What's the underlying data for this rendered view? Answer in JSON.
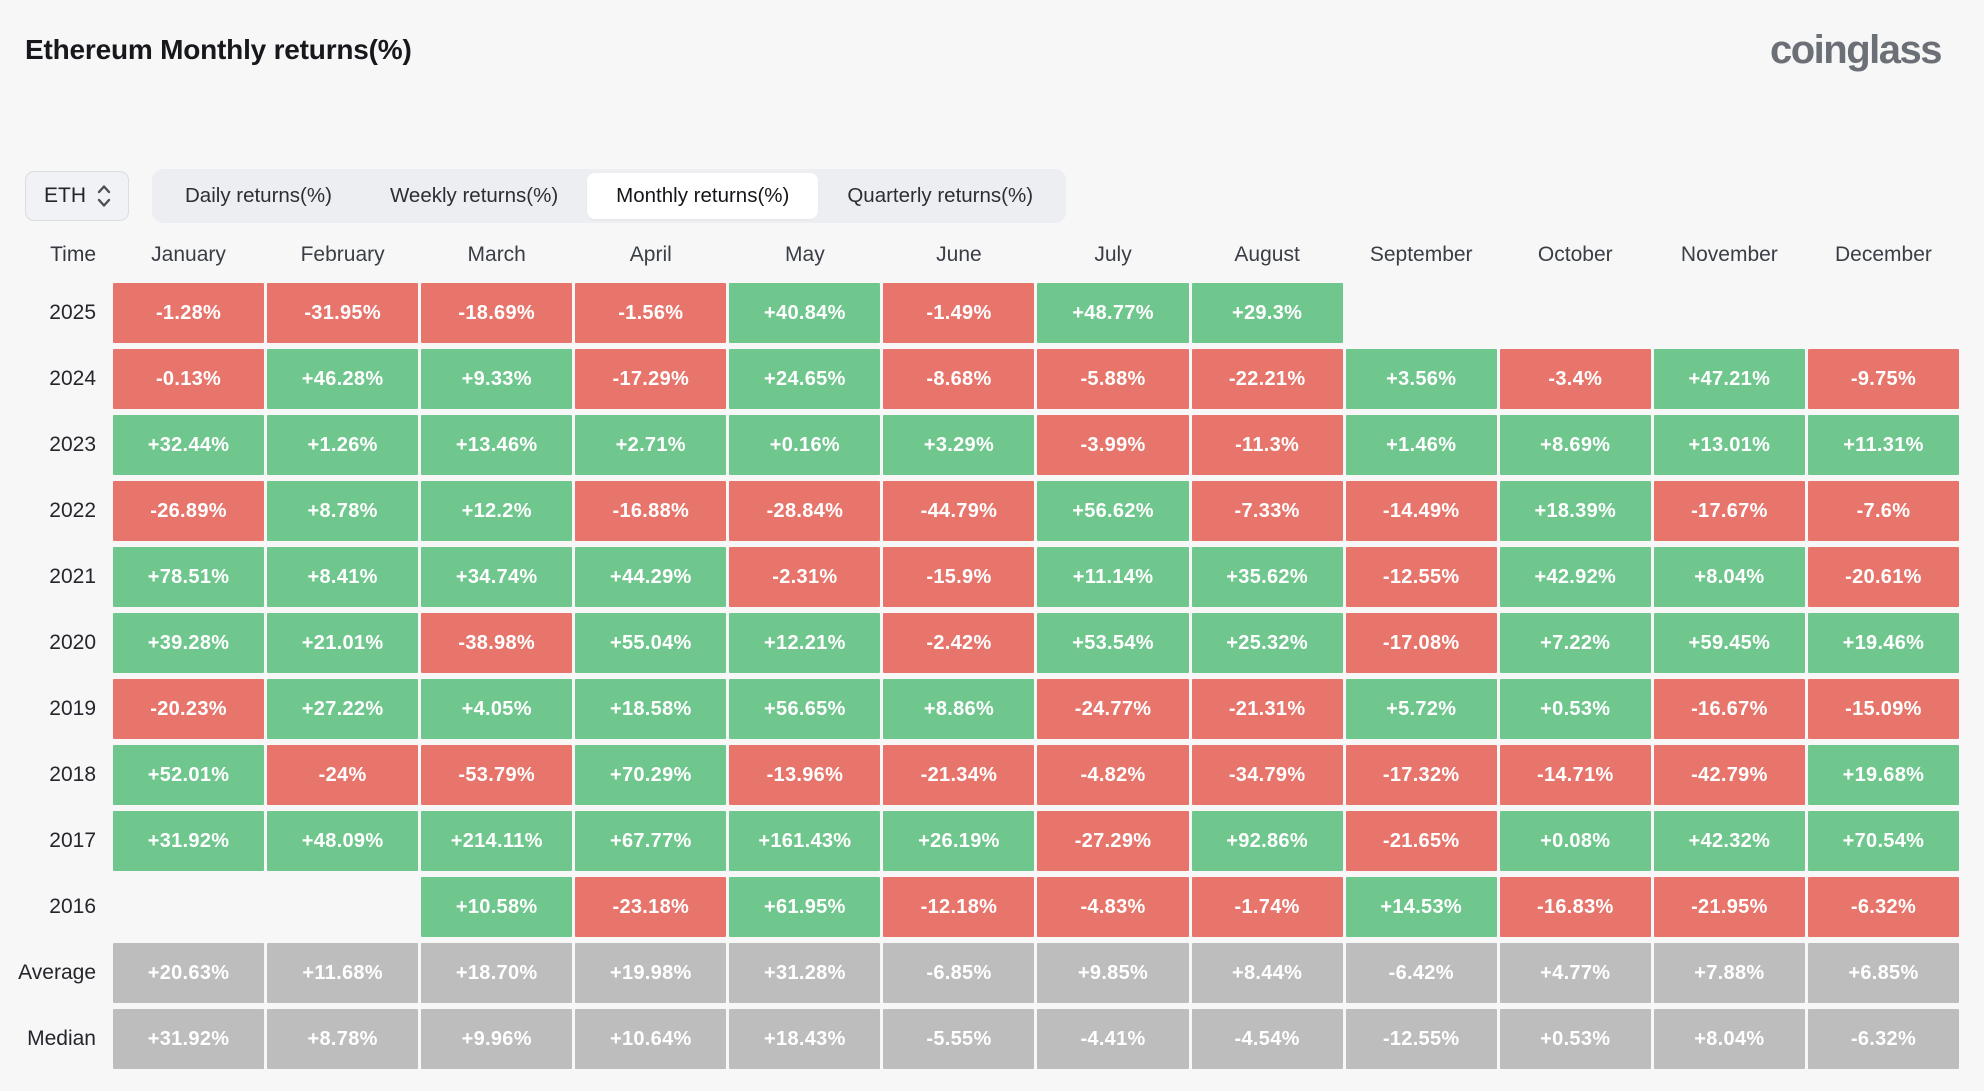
{
  "header": {
    "title": "Ethereum Monthly returns(%)",
    "logo_text": "coinglass"
  },
  "controls": {
    "symbol_select": {
      "value": "ETH",
      "icon": "chevron-up-down-icon"
    },
    "tabs": [
      {
        "label": "Daily returns(%)",
        "active": false
      },
      {
        "label": "Weekly returns(%)",
        "active": false
      },
      {
        "label": "Monthly returns(%)",
        "active": true
      },
      {
        "label": "Quarterly returns(%)",
        "active": false
      }
    ]
  },
  "colors": {
    "positive": "#6fc78e",
    "negative": "#e8756c",
    "stat": "#bdbdbd",
    "background": "#f7f7f8"
  },
  "table": {
    "time_header": "Time",
    "months": [
      "January",
      "February",
      "March",
      "April",
      "May",
      "June",
      "July",
      "August",
      "September",
      "October",
      "November",
      "December"
    ],
    "rows": [
      {
        "label": "2025",
        "kind": "data",
        "cells": [
          "-1.28%",
          "-31.95%",
          "-18.69%",
          "-1.56%",
          "+40.84%",
          "-1.49%",
          "+48.77%",
          "+29.3%",
          null,
          null,
          null,
          null
        ]
      },
      {
        "label": "2024",
        "kind": "data",
        "cells": [
          "-0.13%",
          "+46.28%",
          "+9.33%",
          "-17.29%",
          "+24.65%",
          "-8.68%",
          "-5.88%",
          "-22.21%",
          "+3.56%",
          "-3.4%",
          "+47.21%",
          "-9.75%"
        ]
      },
      {
        "label": "2023",
        "kind": "data",
        "cells": [
          "+32.44%",
          "+1.26%",
          "+13.46%",
          "+2.71%",
          "+0.16%",
          "+3.29%",
          "-3.99%",
          "-11.3%",
          "+1.46%",
          "+8.69%",
          "+13.01%",
          "+11.31%"
        ]
      },
      {
        "label": "2022",
        "kind": "data",
        "cells": [
          "-26.89%",
          "+8.78%",
          "+12.2%",
          "-16.88%",
          "-28.84%",
          "-44.79%",
          "+56.62%",
          "-7.33%",
          "-14.49%",
          "+18.39%",
          "-17.67%",
          "-7.6%"
        ]
      },
      {
        "label": "2021",
        "kind": "data",
        "cells": [
          "+78.51%",
          "+8.41%",
          "+34.74%",
          "+44.29%",
          "-2.31%",
          "-15.9%",
          "+11.14%",
          "+35.62%",
          "-12.55%",
          "+42.92%",
          "+8.04%",
          "-20.61%"
        ]
      },
      {
        "label": "2020",
        "kind": "data",
        "cells": [
          "+39.28%",
          "+21.01%",
          "-38.98%",
          "+55.04%",
          "+12.21%",
          "-2.42%",
          "+53.54%",
          "+25.32%",
          "-17.08%",
          "+7.22%",
          "+59.45%",
          "+19.46%"
        ]
      },
      {
        "label": "2019",
        "kind": "data",
        "cells": [
          "-20.23%",
          "+27.22%",
          "+4.05%",
          "+18.58%",
          "+56.65%",
          "+8.86%",
          "-24.77%",
          "-21.31%",
          "+5.72%",
          "+0.53%",
          "-16.67%",
          "-15.09%"
        ]
      },
      {
        "label": "2018",
        "kind": "data",
        "cells": [
          "+52.01%",
          "-24%",
          "-53.79%",
          "+70.29%",
          "-13.96%",
          "-21.34%",
          "-4.82%",
          "-34.79%",
          "-17.32%",
          "-14.71%",
          "-42.79%",
          "+19.68%"
        ]
      },
      {
        "label": "2017",
        "kind": "data",
        "cells": [
          "+31.92%",
          "+48.09%",
          "+214.11%",
          "+67.77%",
          "+161.43%",
          "+26.19%",
          "-27.29%",
          "+92.86%",
          "-21.65%",
          "+0.08%",
          "+42.32%",
          "+70.54%"
        ]
      },
      {
        "label": "2016",
        "kind": "data",
        "cells": [
          null,
          null,
          "+10.58%",
          "-23.18%",
          "+61.95%",
          "-12.18%",
          "-4.83%",
          "-1.74%",
          "+14.53%",
          "-16.83%",
          "-21.95%",
          "-6.32%"
        ]
      },
      {
        "label": "Average",
        "kind": "stat",
        "cells": [
          "+20.63%",
          "+11.68%",
          "+18.70%",
          "+19.98%",
          "+31.28%",
          "-6.85%",
          "+9.85%",
          "+8.44%",
          "-6.42%",
          "+4.77%",
          "+7.88%",
          "+6.85%"
        ]
      },
      {
        "label": "Median",
        "kind": "stat",
        "cells": [
          "+31.92%",
          "+8.78%",
          "+9.96%",
          "+10.64%",
          "+18.43%",
          "-5.55%",
          "-4.41%",
          "-4.54%",
          "-12.55%",
          "+0.53%",
          "+8.04%",
          "-6.32%"
        ]
      }
    ]
  }
}
